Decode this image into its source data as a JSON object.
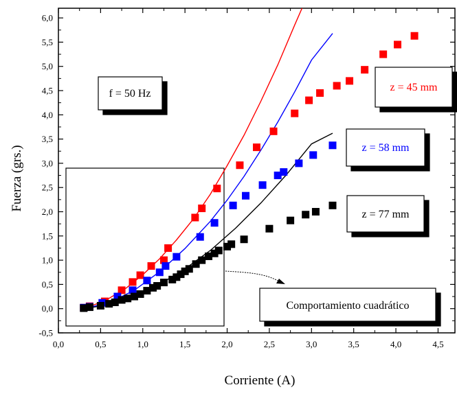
{
  "chart_data": {
    "type": "scatter",
    "title": "",
    "xlabel": "Corriente   (A)",
    "ylabel": "Fuerza  (grs.)",
    "xlim": [
      0.0,
      4.7
    ],
    "ylim": [
      -0.5,
      6.2
    ],
    "x_ticks": [
      "0,0",
      "0,5",
      "1,0",
      "1,5",
      "2,0",
      "2,5",
      "3,0",
      "3,5",
      "4,0",
      "4,5"
    ],
    "y_ticks": [
      "-0,5",
      "0,0",
      "0,5",
      "1,0",
      "1,5",
      "2,0",
      "2,5",
      "3,0",
      "3,5",
      "4,0",
      "4,5",
      "5,0",
      "5,5",
      "6,0"
    ],
    "series": [
      {
        "name": "z = 45 mm",
        "color": "#ff0000",
        "points": [
          [
            0.3,
            0.02
          ],
          [
            0.37,
            0.05
          ],
          [
            0.55,
            0.15
          ],
          [
            0.75,
            0.38
          ],
          [
            0.88,
            0.55
          ],
          [
            0.97,
            0.69
          ],
          [
            1.1,
            0.88
          ],
          [
            1.25,
            1.0
          ],
          [
            1.3,
            1.25
          ],
          [
            1.62,
            1.88
          ],
          [
            1.7,
            2.07
          ],
          [
            1.88,
            2.48
          ],
          [
            2.15,
            2.96
          ],
          [
            2.35,
            3.33
          ],
          [
            2.55,
            3.66
          ],
          [
            2.8,
            4.03
          ],
          [
            2.97,
            4.3
          ],
          [
            3.1,
            4.45
          ],
          [
            3.3,
            4.6
          ],
          [
            3.45,
            4.7
          ],
          [
            3.63,
            4.93
          ],
          [
            3.85,
            5.25
          ],
          [
            4.02,
            5.45
          ],
          [
            4.22,
            5.63
          ]
        ],
        "fit": [
          [
            0.3,
            0.0
          ],
          [
            0.55,
            0.16
          ],
          [
            0.8,
            0.42
          ],
          [
            1.0,
            0.7
          ],
          [
            1.2,
            1.03
          ],
          [
            1.4,
            1.42
          ],
          [
            1.6,
            1.85
          ],
          [
            1.8,
            2.36
          ],
          [
            2.0,
            2.95
          ],
          [
            2.2,
            3.58
          ],
          [
            2.4,
            4.28
          ],
          [
            2.6,
            5.03
          ],
          [
            2.8,
            5.85
          ],
          [
            2.9,
            6.25
          ]
        ]
      },
      {
        "name": "z = 58 mm",
        "color": "#0000ff",
        "points": [
          [
            0.3,
            0.02
          ],
          [
            0.37,
            0.04
          ],
          [
            0.52,
            0.12
          ],
          [
            0.7,
            0.25
          ],
          [
            0.88,
            0.38
          ],
          [
            1.05,
            0.58
          ],
          [
            1.2,
            0.75
          ],
          [
            1.27,
            0.88
          ],
          [
            1.4,
            1.07
          ],
          [
            1.68,
            1.48
          ],
          [
            1.85,
            1.77
          ],
          [
            2.07,
            2.13
          ],
          [
            2.22,
            2.33
          ],
          [
            2.42,
            2.55
          ],
          [
            2.6,
            2.75
          ],
          [
            2.67,
            2.82
          ],
          [
            2.85,
            3.0
          ],
          [
            3.02,
            3.17
          ],
          [
            3.25,
            3.37
          ]
        ],
        "fit": [
          [
            0.3,
            0.0
          ],
          [
            0.6,
            0.12
          ],
          [
            0.9,
            0.38
          ],
          [
            1.2,
            0.76
          ],
          [
            1.5,
            1.24
          ],
          [
            1.8,
            1.8
          ],
          [
            2.0,
            2.24
          ],
          [
            2.2,
            2.73
          ],
          [
            2.4,
            3.27
          ],
          [
            2.6,
            3.85
          ],
          [
            2.8,
            4.47
          ],
          [
            3.0,
            5.13
          ],
          [
            3.25,
            5.68
          ]
        ]
      },
      {
        "name": "z = 77 mm",
        "color": "#000000",
        "points": [
          [
            0.3,
            0.01
          ],
          [
            0.37,
            0.03
          ],
          [
            0.5,
            0.06
          ],
          [
            0.6,
            0.1
          ],
          [
            0.67,
            0.13
          ],
          [
            0.75,
            0.18
          ],
          [
            0.82,
            0.21
          ],
          [
            0.9,
            0.25
          ],
          [
            0.97,
            0.3
          ],
          [
            1.05,
            0.37
          ],
          [
            1.12,
            0.43
          ],
          [
            1.17,
            0.47
          ],
          [
            1.25,
            0.54
          ],
          [
            1.35,
            0.6
          ],
          [
            1.4,
            0.65
          ],
          [
            1.45,
            0.71
          ],
          [
            1.5,
            0.77
          ],
          [
            1.55,
            0.82
          ],
          [
            1.63,
            0.92
          ],
          [
            1.7,
            1.0
          ],
          [
            1.78,
            1.08
          ],
          [
            1.85,
            1.14
          ],
          [
            1.9,
            1.2
          ],
          [
            2.0,
            1.28
          ],
          [
            2.05,
            1.33
          ],
          [
            2.2,
            1.43
          ],
          [
            2.5,
            1.65
          ],
          [
            2.75,
            1.82
          ],
          [
            2.93,
            1.94
          ],
          [
            3.05,
            2.0
          ],
          [
            3.25,
            2.13
          ]
        ],
        "fit": [
          [
            0.3,
            0.0
          ],
          [
            0.6,
            0.08
          ],
          [
            0.9,
            0.25
          ],
          [
            1.2,
            0.5
          ],
          [
            1.5,
            0.82
          ],
          [
            1.8,
            1.2
          ],
          [
            2.1,
            1.66
          ],
          [
            2.4,
            2.18
          ],
          [
            2.7,
            2.76
          ],
          [
            3.0,
            3.4
          ],
          [
            3.25,
            3.62
          ]
        ]
      }
    ],
    "annotations": {
      "freq_label": "f = 50 Hz",
      "callout_label": "Comportamiento cuadrático"
    }
  }
}
